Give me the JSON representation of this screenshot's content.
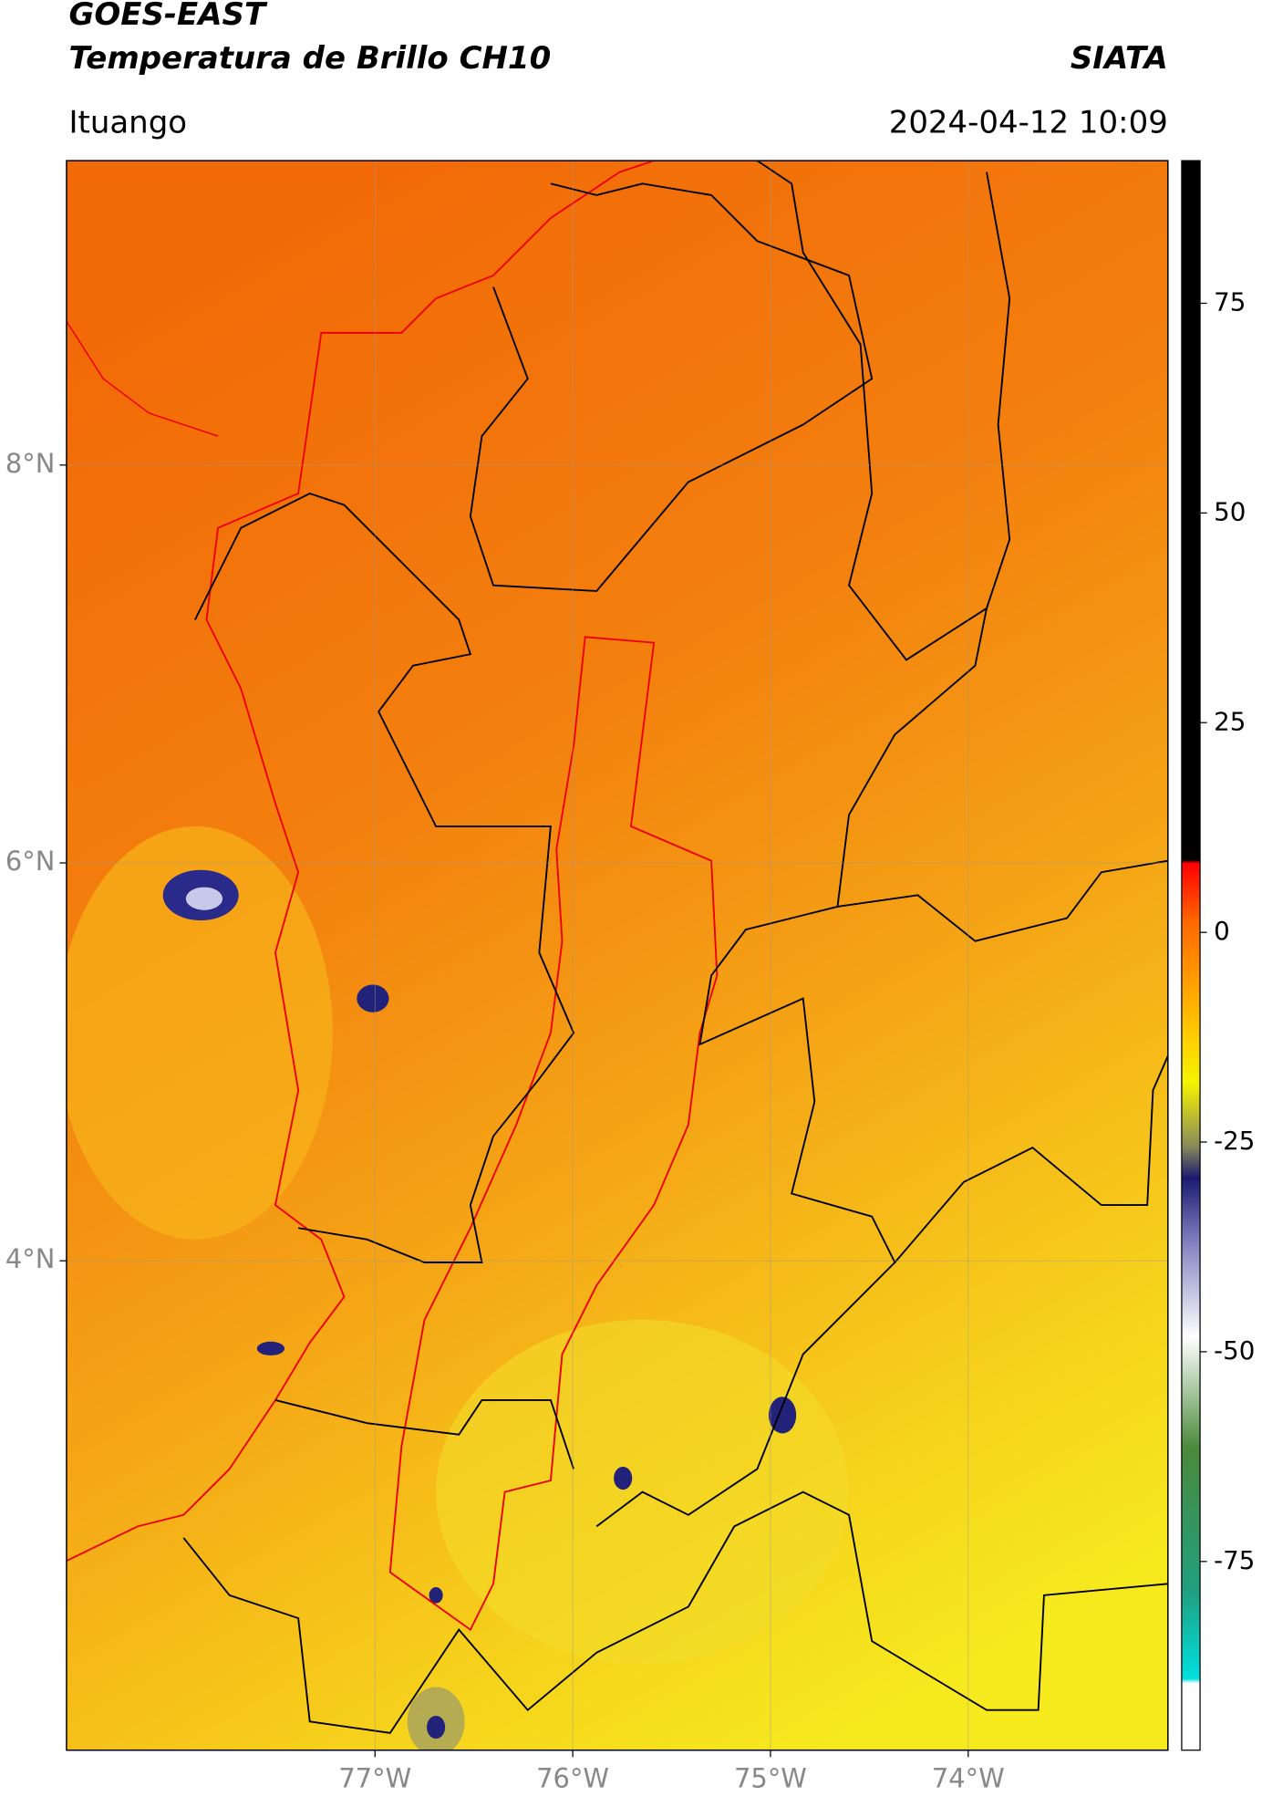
{
  "header": {
    "satellite": "GOES-EAST",
    "product": "Temperatura de Brillo CH10",
    "source": "SIATA",
    "region": "Ituango",
    "datetime": "2024-04-12 10:09"
  },
  "map": {
    "lonlim": [
      -78.56,
      -72.99
    ],
    "latlim": [
      1.54,
      9.53
    ],
    "lonticks": [
      {
        "value": -77,
        "label": "77°W"
      },
      {
        "value": -76,
        "label": "76°W"
      },
      {
        "value": -75,
        "label": "75°W"
      },
      {
        "value": -74,
        "label": "74°W"
      }
    ],
    "latticks": [
      {
        "value": 8,
        "label": "8°N"
      },
      {
        "value": 6,
        "label": "6°N"
      },
      {
        "value": 4,
        "label": "4°N"
      }
    ],
    "grid": true
  },
  "colorbar": {
    "clim": [
      -97.5,
      92
    ],
    "ticks": [
      75,
      50,
      25,
      0,
      -25,
      -50,
      -75
    ]
  }
}
